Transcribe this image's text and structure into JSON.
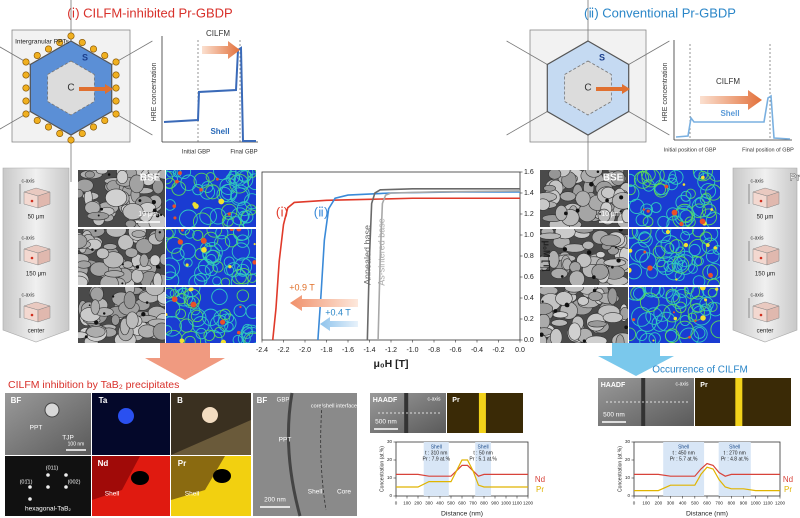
{
  "panel_i": {
    "title": "(ⅰ) CILFM-inhibited Pr-GBDP",
    "ppt_label": "Intergranular PPTs",
    "shell": "S",
    "core": "C",
    "arrow": "CILFM",
    "ylabel": "HRE concentration",
    "shell_label": "Shell",
    "x_start": "Initial GBP",
    "x_end": "Final GBP"
  },
  "panel_ii": {
    "title": "(ⅱ) Conventional Pr-GBDP",
    "shell": "S",
    "core": "C",
    "arrow": "CILFM",
    "ylabel": "HRE concentration",
    "shell_label": "Shell",
    "x_start": "Initial position of GBP",
    "x_end": "Final position of GBP"
  },
  "depth_left": [
    {
      "axis": "c-axis",
      "depth": "50 μm"
    },
    {
      "axis": "c-axis",
      "depth": "150 μm"
    },
    {
      "axis": "c-axis",
      "depth": "center"
    }
  ],
  "depth_right": [
    {
      "axis": "c-axis",
      "depth": "50 μm"
    },
    {
      "axis": "c-axis",
      "depth": "150 μm"
    },
    {
      "axis": "c-axis",
      "depth": "center"
    }
  ],
  "maps_i": {
    "bse": "BSE",
    "pr": "Pr",
    "scale": "10 μm"
  },
  "maps_ii": {
    "bse": "BSE",
    "pr": "Pr",
    "scale": "10 μm"
  },
  "bottom_i": {
    "title": "CILFM inhibition by TaB₂ precipitates",
    "bf": {
      "label": "BF",
      "ppt": "PPT",
      "tjp": "TJP",
      "scale": "100 nm"
    },
    "ta": "Ta",
    "b": "B",
    "saed": {
      "spots": [
        "(011)",
        "(01̄1)",
        "(002)"
      ],
      "phase": "hexagonal-TaB₂"
    },
    "nd": {
      "label": "Nd",
      "shell": "Shell"
    },
    "pr": {
      "label": "Pr",
      "shell": "Shell"
    },
    "bf2": {
      "label": "BF",
      "gbp": "GBP",
      "ppt": "PPT",
      "interface": "core/shell interface",
      "shell": "Shell",
      "core": "Core",
      "scale": "200 nm"
    },
    "haadf": {
      "label": "HAADF",
      "axis": "c-axis",
      "pr": "Pr",
      "scale": "500 nm"
    },
    "shells": [
      {
        "label": "Shell",
        "thickness": "t : 310 nm",
        "pr": "Pr : 7.9 at.%"
      },
      {
        "label": "Shell",
        "thickness": "t : 50 nm",
        "pr": "Pr : 5.1 at.%"
      }
    ]
  },
  "bottom_ii": {
    "title": "Occurrence of CILFM",
    "haadf": {
      "label": "HAADF",
      "axis": "c-axis",
      "pr": "Pr",
      "scale": "500 nm"
    },
    "shells": [
      {
        "label": "Shell",
        "thickness": "t : 450 nm",
        "pr": "Pr : 5.7 at.%"
      },
      {
        "label": "Shell",
        "thickness": "t : 270 nm",
        "pr": "Pr : 4.8 at.%"
      }
    ]
  },
  "chart_data": [
    {
      "type": "line",
      "xlabel": "μ₀H [T]",
      "ylabel": "μ₀M [T]",
      "xlim": [
        -2.4,
        0
      ],
      "ylim": [
        0,
        1.6
      ],
      "xticks": [
        -2.4,
        -2.2,
        {
          "value": -2,
          "label": "-2.0"
        },
        -1.8,
        -1.6,
        -1.4,
        -1.2,
        {
          "value": -1,
          "label": "-1.0"
        },
        -0.8,
        -0.6,
        -0.4,
        -0.2,
        {
          "value": 0,
          "label": "0.0"
        }
      ],
      "yticks": [
        {
          "value": 0,
          "label": "0.0"
        },
        0.2,
        0.4,
        0.6,
        0.8,
        {
          "value": 1,
          "label": "1.0"
        },
        1.2,
        1.4,
        1.6
      ],
      "annotations": [
        "+0.9 T",
        "+0.4 T"
      ],
      "series": [
        {
          "name": "(ⅰ)",
          "color": "#e03a2a",
          "x": [
            -2.3,
            -2.27,
            -2.24,
            -2.2,
            -2.16,
            -2.1,
            -1.8,
            -1.4,
            -1.0,
            -0.6,
            -0.2,
            0
          ],
          "values": [
            0,
            0.3,
            0.75,
            1.1,
            1.26,
            1.31,
            1.33,
            1.34,
            1.35,
            1.35,
            1.35,
            1.35
          ]
        },
        {
          "name": "(ⅱ)",
          "color": "#3a8ad8",
          "x": [
            -1.88,
            -1.85,
            -1.82,
            -1.78,
            -1.72,
            -1.6,
            -1.2,
            -0.6,
            0
          ],
          "values": [
            0,
            0.45,
            0.95,
            1.25,
            1.35,
            1.38,
            1.4,
            1.41,
            1.41
          ]
        },
        {
          "name": "Annealed base",
          "color": "#6a6a6a",
          "x": [
            -1.42,
            -1.4,
            -1.38,
            -1.35,
            -1.3,
            -1.0,
            -0.5,
            0
          ],
          "values": [
            0,
            0.8,
            1.3,
            1.4,
            1.43,
            1.44,
            1.44,
            1.44
          ]
        },
        {
          "name": "As-sintered base",
          "color": "#a8a8a8",
          "x": [
            -1.32,
            -1.3,
            -1.28,
            -1.25,
            -1.2,
            -0.8,
            0
          ],
          "values": [
            0,
            0.8,
            1.3,
            1.38,
            1.4,
            1.41,
            1.42
          ]
        }
      ]
    },
    {
      "type": "line",
      "xlabel": "Distance (nm)",
      "ylabel": "Concentration (at.%)",
      "xlim": [
        0,
        1200
      ],
      "ylim": [
        0,
        30
      ],
      "xticks": [
        0,
        100,
        200,
        300,
        400,
        500,
        600,
        700,
        800,
        900,
        1000,
        1100,
        1200
      ],
      "yticks": [
        0,
        10,
        20,
        30
      ],
      "x": [
        0,
        100,
        200,
        300,
        400,
        500,
        550,
        600,
        650,
        700,
        750,
        800,
        900,
        1000,
        1100,
        1200
      ],
      "series": [
        {
          "name": "Nd",
          "color": "#d8433a",
          "values": [
            12,
            12,
            12,
            11,
            11,
            11,
            14,
            17,
            17,
            14,
            11,
            12,
            12,
            12,
            12,
            12
          ]
        },
        {
          "name": "Pr",
          "color": "#e0b400",
          "values": [
            5,
            5,
            5,
            8,
            8,
            8,
            14,
            20,
            20,
            14,
            6,
            5,
            5,
            5,
            5,
            5
          ]
        }
      ]
    },
    {
      "type": "line",
      "xlabel": "Distance (nm)",
      "ylabel": "Concentration (at.%)",
      "xlim": [
        0,
        1200
      ],
      "ylim": [
        0,
        30
      ],
      "xticks": [
        0,
        100,
        200,
        300,
        400,
        500,
        600,
        700,
        800,
        900,
        1000,
        1100,
        1200
      ],
      "yticks": [
        0,
        10,
        20,
        30
      ],
      "x": [
        0,
        100,
        200,
        300,
        400,
        500,
        550,
        600,
        650,
        700,
        750,
        800,
        900,
        1000,
        1100,
        1200
      ],
      "series": [
        {
          "name": "Nd",
          "color": "#d8433a",
          "values": [
            12,
            12,
            12,
            11,
            11,
            11,
            15,
            18,
            17,
            13,
            11,
            12,
            12,
            12,
            12,
            12
          ]
        },
        {
          "name": "Pr",
          "color": "#e0b400",
          "values": [
            3,
            3,
            3,
            6,
            6,
            6,
            12,
            16,
            15,
            9,
            5,
            4,
            4,
            3,
            3,
            3
          ]
        }
      ]
    }
  ]
}
